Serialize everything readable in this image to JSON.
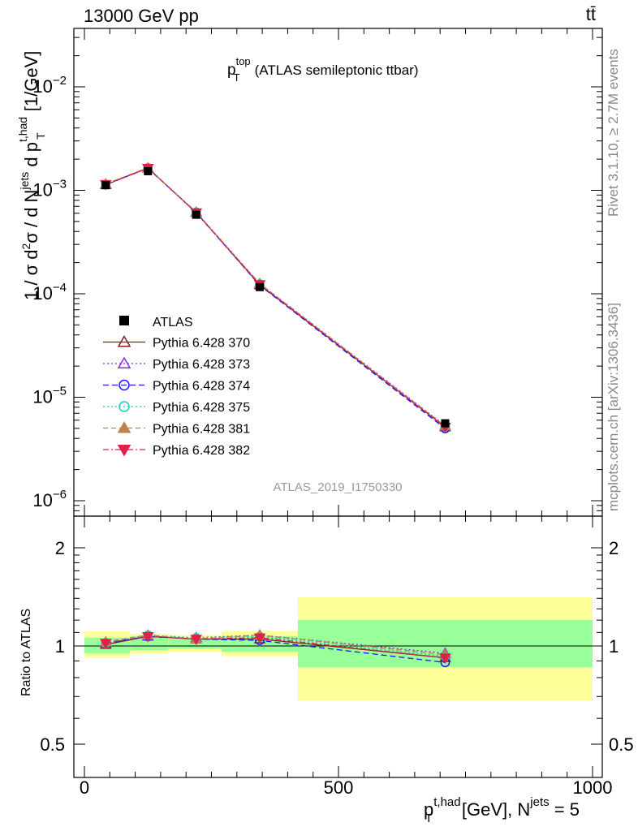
{
  "header": {
    "left_label": "13000 GeV pp",
    "right_label": "tt̄"
  },
  "side_labels": {
    "top": "Rivet 3.1.10, ≥ 2.7M events",
    "bottom": "mcplots.cern.ch [arXiv:1306.3436]"
  },
  "chart_data": {
    "type": "scatter",
    "title_main": "p",
    "title_sup": "top",
    "title_sub": "T",
    "title_rest": "(ATLAS semileptonic ttbar)",
    "watermark": "ATLAS_2019_I1750330",
    "xaxis": {
      "range": [
        0,
        1000
      ],
      "ticks": [
        "0",
        "500",
        "1000"
      ],
      "label": "[GeV], N",
      "label_var": "p",
      "label_var_sup": "t,had",
      "label_var_sub": "T",
      "label_sup2": "jets",
      "label_tail": " = 5"
    },
    "main_yaxis": {
      "scale": "log",
      "range": [
        8e-07,
        0.04
      ],
      "ticks": [
        {
          "base": "10",
          "exp": "−6",
          "value": 1e-06
        },
        {
          "base": "10",
          "exp": "−5",
          "value": 1e-05
        },
        {
          "base": "10",
          "exp": "−4",
          "value": 0.0001
        },
        {
          "base": "10",
          "exp": "−3",
          "value": 0.001
        },
        {
          "base": "10",
          "exp": "−2",
          "value": 0.01
        }
      ],
      "label": "1 / σ d²σ /  d N^jets d p_T^t,had [1/GeV]"
    },
    "ratio_yaxis": {
      "scale": "log",
      "range": [
        0.42,
        2.4
      ],
      "ticks": [
        "0.5",
        "1",
        "2"
      ],
      "tick_values": [
        0.5,
        1,
        2
      ],
      "label": "Ratio to ATLAS"
    },
    "bins": [
      {
        "low": 0,
        "high": 90,
        "center": 42,
        "unc_inner": [
          0.95,
          1.06
        ],
        "unc_outer": [
          0.92,
          1.11
        ]
      },
      {
        "low": 90,
        "high": 165,
        "center": 125,
        "unc_inner": [
          0.97,
          1.07
        ],
        "unc_outer": [
          0.95,
          1.09
        ]
      },
      {
        "low": 165,
        "high": 270,
        "center": 220,
        "unc_inner": [
          0.98,
          1.05
        ],
        "unc_outer": [
          0.96,
          1.08
        ]
      },
      {
        "low": 270,
        "high": 420,
        "center": 345,
        "unc_inner": [
          0.96,
          1.07
        ],
        "unc_outer": [
          0.93,
          1.11
        ]
      },
      {
        "low": 420,
        "high": 1000,
        "center": 710,
        "unc_inner": [
          0.86,
          1.2
        ],
        "unc_outer": [
          0.68,
          1.41
        ]
      }
    ],
    "data": {
      "name": "ATLAS",
      "x": [
        42,
        125,
        220,
        345,
        710
      ],
      "y": [
        0.00112,
        0.00153,
        0.00058,
        0.000116,
        5.6e-06
      ]
    },
    "series": [
      {
        "name": "Pythia 6.428 370",
        "color": "#8b1a1a",
        "marker": "triangle-open",
        "dash": "",
        "ratio": [
          1.01,
          1.07,
          1.05,
          1.05,
          0.92
        ]
      },
      {
        "name": "Pythia 6.428 373",
        "color": "#8a2be2",
        "marker": "triangle-open",
        "dash": "2,3",
        "ratio": [
          1.02,
          1.07,
          1.06,
          1.08,
          0.95
        ]
      },
      {
        "name": "Pythia 6.428 374",
        "color": "#1a1aff",
        "marker": "circle-open",
        "dash": "7,4",
        "ratio": [
          1.02,
          1.07,
          1.05,
          1.04,
          0.89
        ]
      },
      {
        "name": "Pythia 6.428 375",
        "color": "#1ad1b8",
        "marker": "circle-open",
        "dash": "2,3",
        "ratio": [
          1.02,
          1.08,
          1.06,
          1.07,
          0.93
        ]
      },
      {
        "name": "Pythia 6.428 381",
        "color": "#c08050",
        "marker": "triangle-filled",
        "dash": "6,4",
        "ratio": [
          1.03,
          1.08,
          1.05,
          1.08,
          0.94
        ]
      },
      {
        "name": "Pythia 6.428 382",
        "color": "#e0204a",
        "marker": "triangle-down-filled",
        "dash": "7,3,2,3",
        "ratio": [
          1.02,
          1.07,
          1.05,
          1.06,
          0.92
        ]
      }
    ],
    "colors": {
      "band_outer": "#ffff99",
      "band_inner": "#99ff99",
      "watermark": "#999999"
    }
  }
}
